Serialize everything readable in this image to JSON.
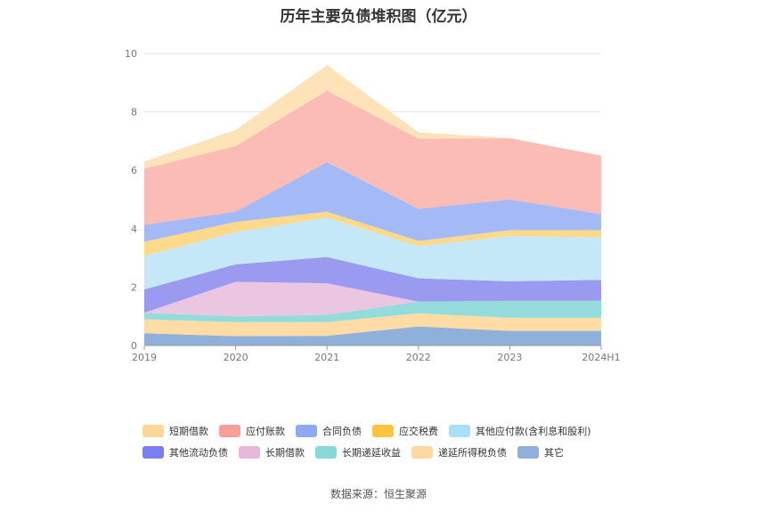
{
  "source_label": "数据来源：恒生聚源",
  "chart_data": {
    "type": "area",
    "title": "历年主要负债堆积图（亿元）",
    "categories": [
      "2019",
      "2020",
      "2021",
      "2022",
      "2023",
      "2024H1"
    ],
    "ylim": [
      0,
      10
    ],
    "yticks": [
      "0",
      "2",
      "4",
      "6",
      "8",
      "10"
    ],
    "grid": true,
    "legend_position": "bottom",
    "series": [
      {
        "name": "其它",
        "color": "#8fb0da",
        "values": [
          0.42,
          0.32,
          0.33,
          0.65,
          0.5,
          0.5
        ]
      },
      {
        "name": "递延所得税负债",
        "color": "#ffdba6",
        "values": [
          0.48,
          0.48,
          0.47,
          0.45,
          0.45,
          0.45
        ]
      },
      {
        "name": "长期递延收益",
        "color": "#94dcdc",
        "values": [
          0.22,
          0.2,
          0.25,
          0.4,
          0.58,
          0.58
        ]
      },
      {
        "name": "长期借款",
        "color": "#ebc6e0",
        "values": [
          0.0,
          1.18,
          1.08,
          0.0,
          0.0,
          0.0
        ]
      },
      {
        "name": "其他流动负债",
        "color": "#9a9af0",
        "values": [
          0.8,
          0.6,
          0.9,
          0.8,
          0.67,
          0.72
        ]
      },
      {
        "name": "其他应付款(含利息和股利)",
        "color": "#c4e8f8",
        "values": [
          1.15,
          1.1,
          1.35,
          1.1,
          1.55,
          1.45
        ]
      },
      {
        "name": "应交税费",
        "color": "#ffd98a",
        "values": [
          0.48,
          0.35,
          0.2,
          0.18,
          0.2,
          0.25
        ]
      },
      {
        "name": "合同负债",
        "color": "#a3baf7",
        "values": [
          0.58,
          0.35,
          1.7,
          1.1,
          1.05,
          0.55
        ]
      },
      {
        "name": "应付账款",
        "color": "#fcbcb6",
        "values": [
          1.92,
          2.25,
          2.45,
          2.4,
          2.1,
          2.0
        ]
      },
      {
        "name": "短期借款",
        "color": "#fee2b8",
        "values": [
          0.25,
          0.55,
          0.87,
          0.22,
          0.0,
          0.0
        ]
      }
    ],
    "legend": [
      {
        "name": "短期借款",
        "color": "#fed69b"
      },
      {
        "name": "应付账款",
        "color": "#f99f97"
      },
      {
        "name": "合同负债",
        "color": "#8ea8f3"
      },
      {
        "name": "应交税费",
        "color": "#ffc33d"
      },
      {
        "name": "其他应付款(含利息和股利)",
        "color": "#a7e0f7"
      },
      {
        "name": "其他流动负债",
        "color": "#7a7ef0"
      },
      {
        "name": "长期借款",
        "color": "#e9b8d8"
      },
      {
        "name": "长期递延收益",
        "color": "#88d8d8"
      },
      {
        "name": "递延所得税负债",
        "color": "#ffd9a1"
      },
      {
        "name": "其它",
        "color": "#93aedb"
      }
    ]
  }
}
